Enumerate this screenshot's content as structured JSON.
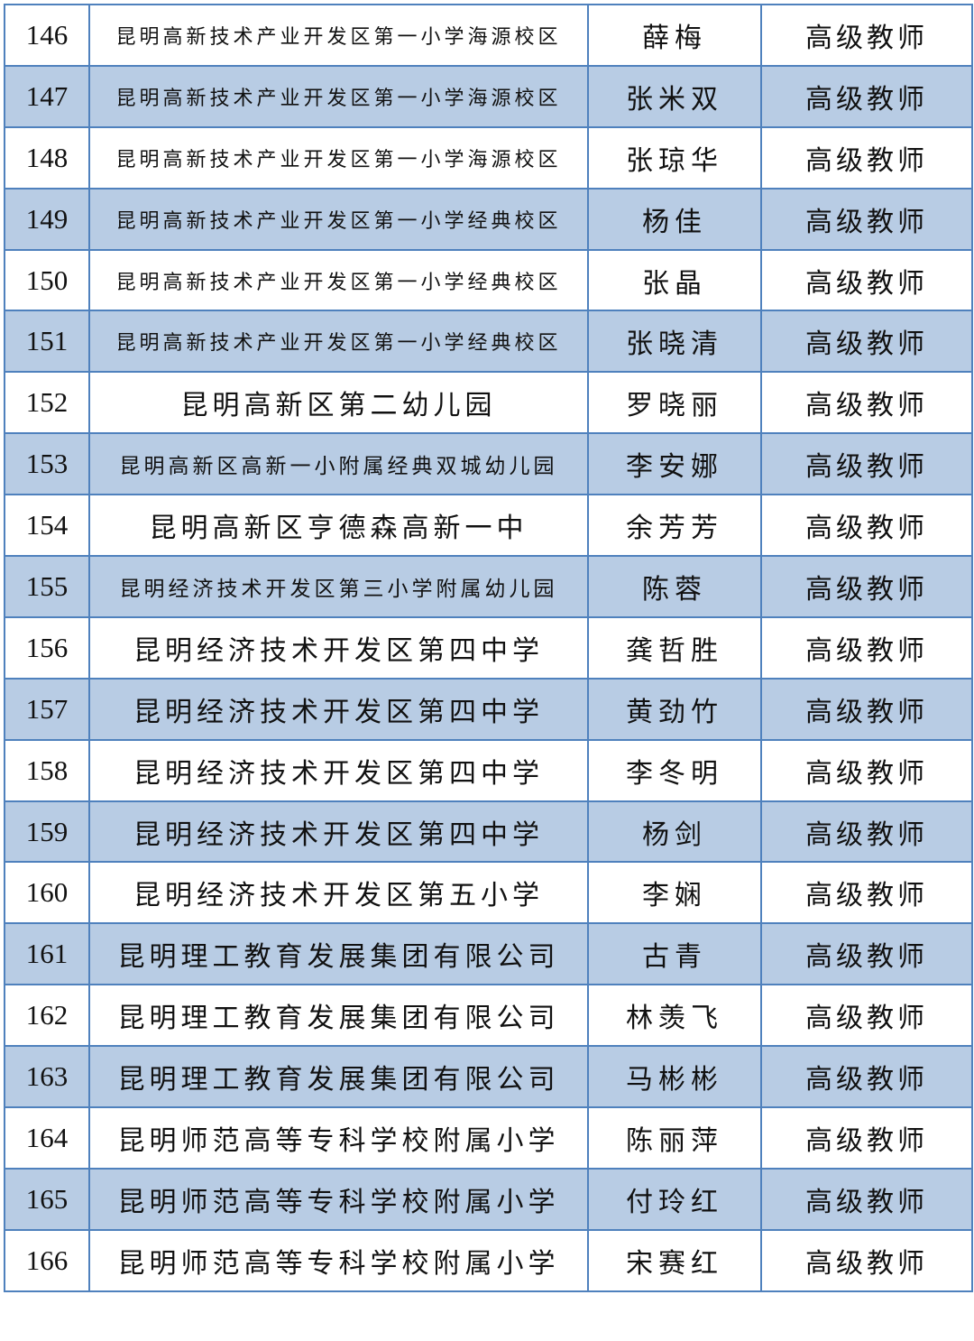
{
  "table": {
    "row_fill_alternate": "#b8cce4",
    "border_color": "#4f81bd",
    "rows": [
      {
        "no": "146",
        "school": "昆明高新技术产业开发区第一小学海源校区",
        "name": "薛梅",
        "title": "高级教师"
      },
      {
        "no": "147",
        "school": "昆明高新技术产业开发区第一小学海源校区",
        "name": "张米双",
        "title": "高级教师"
      },
      {
        "no": "148",
        "school": "昆明高新技术产业开发区第一小学海源校区",
        "name": "张琼华",
        "title": "高级教师"
      },
      {
        "no": "149",
        "school": "昆明高新技术产业开发区第一小学经典校区",
        "name": "杨佳",
        "title": "高级教师"
      },
      {
        "no": "150",
        "school": "昆明高新技术产业开发区第一小学经典校区",
        "name": "张晶",
        "title": "高级教师"
      },
      {
        "no": "151",
        "school": "昆明高新技术产业开发区第一小学经典校区",
        "name": "张晓清",
        "title": "高级教师"
      },
      {
        "no": "152",
        "school": "昆明高新区第二幼儿园",
        "name": "罗晓丽",
        "title": "高级教师"
      },
      {
        "no": "153",
        "school": "昆明高新区高新一小附属经典双城幼儿园",
        "name": "李安娜",
        "title": "高级教师"
      },
      {
        "no": "154",
        "school": "昆明高新区亨德森高新一中",
        "name": "余芳芳",
        "title": "高级教师"
      },
      {
        "no": "155",
        "school": "昆明经济技术开发区第三小学附属幼儿园",
        "name": "陈蓉",
        "title": "高级教师"
      },
      {
        "no": "156",
        "school": "昆明经济技术开发区第四中学",
        "name": "龚哲胜",
        "title": "高级教师"
      },
      {
        "no": "157",
        "school": "昆明经济技术开发区第四中学",
        "name": "黄劲竹",
        "title": "高级教师"
      },
      {
        "no": "158",
        "school": "昆明经济技术开发区第四中学",
        "name": "李冬明",
        "title": "高级教师"
      },
      {
        "no": "159",
        "school": "昆明经济技术开发区第四中学",
        "name": "杨剑",
        "title": "高级教师"
      },
      {
        "no": "160",
        "school": "昆明经济技术开发区第五小学",
        "name": "李娴",
        "title": "高级教师"
      },
      {
        "no": "161",
        "school": "昆明理工教育发展集团有限公司",
        "name": "古青",
        "title": "高级教师"
      },
      {
        "no": "162",
        "school": "昆明理工教育发展集团有限公司",
        "name": "林羡飞",
        "title": "高级教师"
      },
      {
        "no": "163",
        "school": "昆明理工教育发展集团有限公司",
        "name": "马彬彬",
        "title": "高级教师"
      },
      {
        "no": "164",
        "school": "昆明师范高等专科学校附属小学",
        "name": "陈丽萍",
        "title": "高级教师"
      },
      {
        "no": "165",
        "school": "昆明师范高等专科学校附属小学",
        "name": "付玲红",
        "title": "高级教师"
      },
      {
        "no": "166",
        "school": "昆明师范高等专科学校附属小学",
        "name": "宋赛红",
        "title": "高级教师"
      }
    ]
  }
}
